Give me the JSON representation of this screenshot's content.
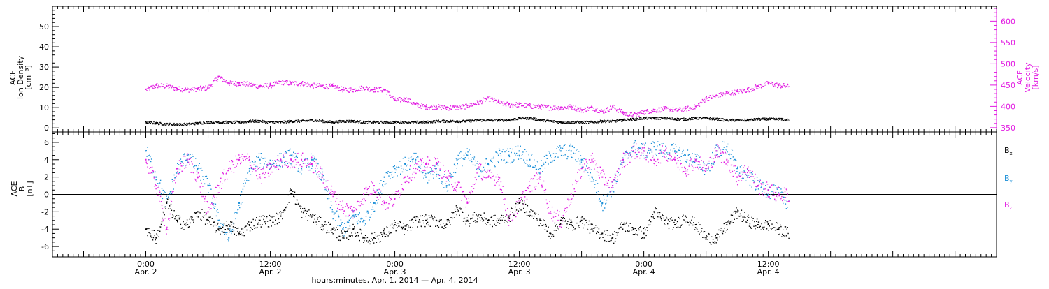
{
  "chart_data": [
    {
      "type": "scatter",
      "panel": "top",
      "ylabel_left": [
        "ACE",
        "Ion Density",
        "[cm⁻³]"
      ],
      "ylabel_right": [
        "ACE",
        "Velocity",
        "[km/s]"
      ],
      "left_ylim": [
        -2,
        60
      ],
      "left_yticks": [
        "0",
        "10",
        "20",
        "30",
        "40",
        "50"
      ],
      "right_ylim": [
        340,
        635
      ],
      "right_yticks": [
        "350",
        "400",
        "450",
        "500",
        "550",
        "600"
      ],
      "grid": false,
      "series": [
        {
          "axis": "left",
          "color": "#000000",
          "t": [
            0,
            2,
            4,
            6,
            8,
            10,
            12,
            14,
            16,
            18,
            20,
            22,
            24,
            26,
            28,
            30,
            32,
            34,
            36,
            38,
            40,
            42,
            44,
            46,
            48,
            50,
            52,
            54,
            56,
            58,
            60,
            62,
            64,
            66,
            68,
            70,
            72,
            74,
            76,
            78,
            80,
            82,
            84,
            86,
            88,
            90,
            92,
            94,
            96,
            98,
            100,
            102,
            104,
            106,
            108,
            110,
            112,
            114,
            116,
            118,
            120,
            122,
            124
          ],
          "values": [
            3,
            2.5,
            2,
            2,
            2,
            2.5,
            3,
            3,
            3,
            3,
            3.5,
            3.5,
            3,
            3,
            3.5,
            3.5,
            4,
            3.5,
            3,
            3.5,
            3.5,
            3,
            3,
            3,
            3,
            3,
            3,
            3,
            3.5,
            3.5,
            3.5,
            3.5,
            4,
            4,
            4,
            4,
            5,
            5,
            4,
            3.5,
            3,
            3,
            3,
            3,
            3.5,
            3.5,
            4,
            4.5,
            5,
            5,
            5,
            4.5,
            4.5,
            5,
            5,
            4.5,
            4,
            4,
            4,
            4.5,
            4.5,
            4.5,
            4
          ]
        },
        {
          "axis": "right",
          "color": "#e21be2",
          "t": [
            0,
            2,
            4,
            6,
            8,
            10,
            12,
            14,
            16,
            18,
            20,
            22,
            24,
            26,
            28,
            30,
            32,
            34,
            36,
            38,
            40,
            42,
            44,
            46,
            48,
            50,
            52,
            54,
            56,
            58,
            60,
            62,
            64,
            66,
            68,
            70,
            72,
            74,
            76,
            78,
            80,
            82,
            84,
            86,
            88,
            90,
            92,
            94,
            96,
            98,
            100,
            102,
            104,
            106,
            108,
            110,
            112,
            114,
            116,
            118,
            120,
            122,
            124
          ],
          "values": [
            440,
            450,
            448,
            442,
            440,
            442,
            445,
            470,
            455,
            455,
            452,
            448,
            450,
            458,
            455,
            455,
            450,
            448,
            448,
            440,
            440,
            445,
            440,
            440,
            415,
            418,
            405,
            400,
            400,
            398,
            398,
            402,
            410,
            420,
            410,
            405,
            405,
            402,
            400,
            398,
            398,
            400,
            392,
            398,
            388,
            400,
            385,
            380,
            388,
            392,
            395,
            392,
            395,
            400,
            420,
            425,
            432,
            435,
            440,
            448,
            455,
            450,
            448
          ]
        }
      ]
    },
    {
      "type": "scatter",
      "panel": "bottom",
      "ylabel_left": [
        "ACE",
        "B",
        "[nT]"
      ],
      "ylim": [
        -7.2,
        7.2
      ],
      "yticks": [
        "6",
        "4",
        "2",
        "0",
        "-2",
        "-4",
        "-6"
      ],
      "grid": false,
      "zero_line": true,
      "legend_placement": "right",
      "series": [
        {
          "name": "Bx",
          "label_main": "B",
          "label_sub": "x",
          "color": "#000000",
          "t": [
            0,
            2,
            4,
            6,
            8,
            10,
            12,
            14,
            16,
            18,
            20,
            22,
            24,
            26,
            28,
            30,
            32,
            34,
            36,
            38,
            40,
            42,
            44,
            46,
            48,
            50,
            52,
            54,
            56,
            58,
            60,
            62,
            64,
            66,
            68,
            70,
            72,
            74,
            76,
            78,
            80,
            82,
            84,
            86,
            88,
            90,
            92,
            94,
            96,
            98,
            100,
            102,
            104,
            106,
            108,
            110,
            112,
            114,
            116,
            118,
            120,
            122,
            124
          ],
          "values": [
            -4,
            -5,
            -1,
            -3,
            -3.5,
            -2,
            -3,
            -4,
            -3.5,
            -4.5,
            -3.5,
            -3,
            -3,
            -2.5,
            0.5,
            -2,
            -2.5,
            -3.5,
            -4,
            -5,
            -4,
            -5,
            -5,
            -4.5,
            -3.5,
            -4,
            -3,
            -3,
            -3,
            -3.5,
            -1.5,
            -3,
            -2.5,
            -3,
            -3,
            -2.5,
            -1,
            -2,
            -3,
            -4.5,
            -3,
            -3.5,
            -3,
            -4,
            -4.5,
            -5,
            -3.5,
            -4,
            -4.5,
            -2,
            -3,
            -3.5,
            -2.5,
            -3.5,
            -5,
            -5,
            -3.5,
            -2,
            -3,
            -3.5,
            -3.5,
            -4,
            -4.5
          ]
        },
        {
          "name": "By",
          "label_main": "B",
          "label_sub": "y",
          "color": "#1a8fd8",
          "t": [
            0,
            2,
            4,
            6,
            8,
            10,
            12,
            14,
            16,
            18,
            20,
            22,
            24,
            26,
            28,
            30,
            32,
            34,
            36,
            38,
            40,
            42,
            44,
            46,
            48,
            50,
            52,
            54,
            56,
            58,
            60,
            62,
            64,
            66,
            68,
            70,
            72,
            74,
            76,
            78,
            80,
            82,
            84,
            86,
            88,
            90,
            92,
            94,
            96,
            98,
            100,
            102,
            104,
            106,
            108,
            110,
            112,
            114,
            116,
            118,
            120,
            122,
            124
          ],
          "values": [
            5,
            2,
            -1,
            3,
            4.5,
            3,
            1,
            -3,
            -5,
            -1,
            3,
            4,
            3.5,
            4,
            4.5,
            3,
            4,
            2,
            -2,
            -4,
            -2.5,
            -3,
            -1,
            2,
            3,
            3.5,
            4,
            2,
            3,
            1,
            4,
            4.5,
            3,
            3.5,
            4.5,
            4.5,
            5,
            4,
            3,
            4.5,
            5,
            5,
            4,
            2,
            -1,
            1,
            4,
            5.5,
            5,
            5.5,
            5,
            5,
            4.5,
            4,
            3,
            5,
            5.5,
            3,
            2,
            1,
            0.5,
            0,
            -1
          ]
        },
        {
          "name": "Bz",
          "label_main": "B",
          "label_sub": "z",
          "color": "#e21be2",
          "t": [
            0,
            2,
            4,
            6,
            8,
            10,
            12,
            14,
            16,
            18,
            20,
            22,
            24,
            26,
            28,
            30,
            32,
            34,
            36,
            38,
            40,
            42,
            44,
            46,
            48,
            50,
            52,
            54,
            56,
            58,
            60,
            62,
            64,
            66,
            68,
            70,
            72,
            74,
            76,
            78,
            80,
            82,
            84,
            86,
            88,
            90,
            92,
            94,
            96,
            98,
            100,
            102,
            104,
            106,
            108,
            110,
            112,
            114,
            116,
            118,
            120,
            122,
            124
          ],
          "values": [
            4,
            1,
            -4,
            3,
            4,
            2,
            -2,
            1,
            3,
            4,
            4,
            2,
            3,
            4,
            4,
            4,
            3.5,
            2,
            0,
            -1.5,
            -2,
            0,
            1,
            -1,
            -0.5,
            2,
            3,
            3.5,
            3.5,
            2,
            1,
            -1,
            3,
            2,
            2,
            -3,
            -1,
            1,
            2,
            -2,
            -3,
            0,
            3,
            4,
            2,
            1,
            4,
            5,
            5,
            4,
            5,
            4,
            3,
            4,
            3,
            5,
            4,
            2,
            3,
            1,
            0.5,
            0,
            0
          ]
        }
      ]
    }
  ],
  "axis": {
    "t_range_hours": [
      -18,
      164
    ],
    "data_end_hour": 125,
    "xticks": [
      {
        "h": 0,
        "time": "0:00",
        "date": "Apr. 2"
      },
      {
        "h": 24,
        "time": "12:00",
        "date": "Apr. 2"
      },
      {
        "h": 48,
        "time": "0:00",
        "date": "Apr. 3"
      },
      {
        "h": 72,
        "time": "12:00",
        "date": "Apr. 3"
      },
      {
        "h": 96,
        "time": "0:00",
        "date": "Apr. 4"
      },
      {
        "h": 120,
        "time": "12:00",
        "date": "Apr. 4"
      }
    ],
    "xlabel": "hours:minutes, Apr.  1, 2014 — Apr.  4, 2014"
  },
  "colors": {
    "black": "#000000",
    "magenta": "#e21be2",
    "blue": "#1a8fd8"
  }
}
